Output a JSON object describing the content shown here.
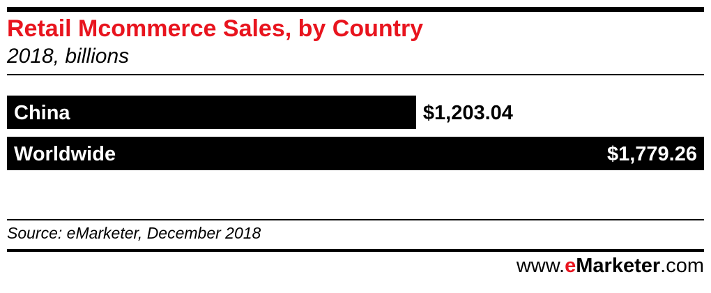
{
  "title": "Retail Mcommerce Sales, by Country",
  "subtitle": "2018, billions",
  "colors": {
    "title": "#e8141e",
    "bar": "#000000",
    "brand_accent": "#e8141e"
  },
  "chart_data": {
    "type": "bar",
    "orientation": "horizontal",
    "categories": [
      "China",
      "Worldwide"
    ],
    "values": [
      1203.04,
      1779.26
    ],
    "value_labels": [
      "$1,203.04",
      "$1,779.26"
    ],
    "xlim": [
      0,
      1779.26
    ],
    "grid": false,
    "legend": "none"
  },
  "source": "Source: eMarketer, December 2018",
  "brand": {
    "prefix": "www.",
    "e": "e",
    "name": "Marketer",
    "suffix": ".com"
  }
}
